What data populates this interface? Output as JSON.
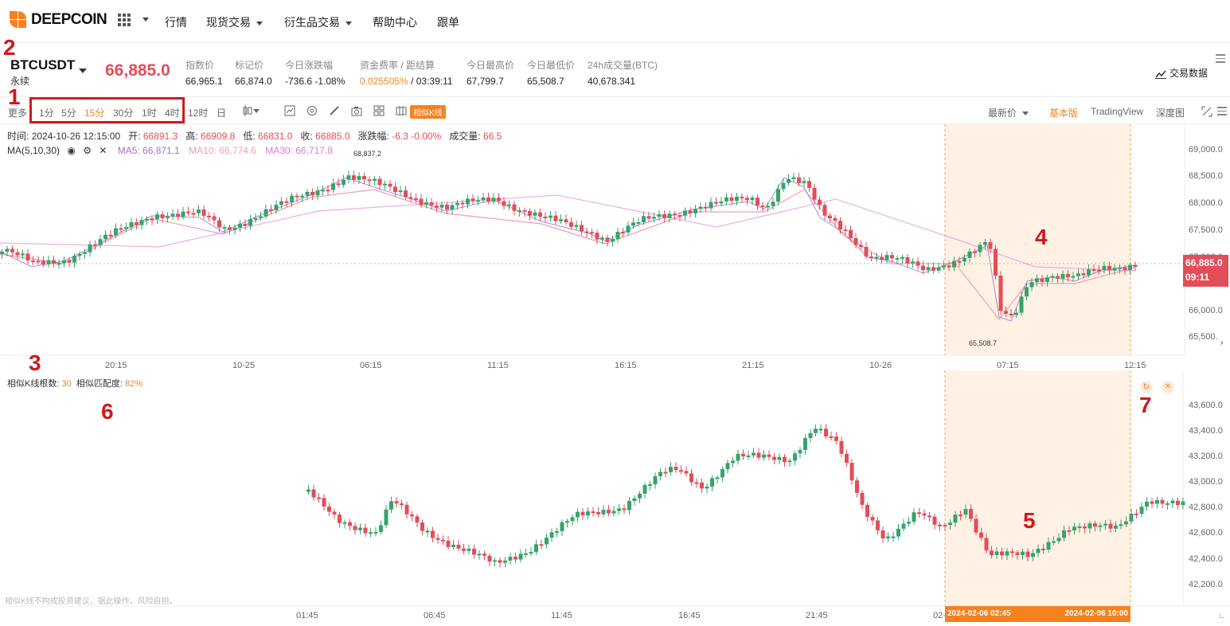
{
  "brand": {
    "name": "DEEPCOIN",
    "color": "#f5821f"
  },
  "nav": [
    "行情",
    "现货交易",
    "衍生品交易",
    "帮助中心",
    "跟单"
  ],
  "ticker": {
    "symbol": "BTCUSDT",
    "contract": "永续",
    "last_price": "66,885.0",
    "stats": [
      {
        "label": "指数价",
        "value": "66,965.1"
      },
      {
        "label": "标记价",
        "value": "66,874.0"
      },
      {
        "label": "今日涨跌幅",
        "value": "-736.6 -1.08%"
      },
      {
        "label": "资金费率 / 距结算",
        "value": "0.025505%",
        "value2": " / 03:39:11"
      },
      {
        "label": "今日最高价",
        "value": "67,799.7"
      },
      {
        "label": "今日最低价",
        "value": "65,508.7"
      },
      {
        "label": "24h成交量(BTC)",
        "value": "40,678.341"
      }
    ],
    "trade_data": "交易数据"
  },
  "toolbar": {
    "more": "更多",
    "intervals": [
      "1分",
      "5分",
      "15分",
      "30分",
      "1时",
      "4时",
      "12时",
      "日"
    ],
    "active_interval": "15分",
    "similar_kline": "相似K线",
    "price_mode": "最新价",
    "views": [
      "基本版",
      "TradingView",
      "深度图"
    ],
    "active_view": "基本版"
  },
  "ohlc": {
    "time_label": "时间:",
    "time": "2024-10-26 12:15:00",
    "open_label": "开:",
    "open": "66891.3",
    "high_label": "高:",
    "high": "66909.8",
    "low_label": "低:",
    "low": "66831.0",
    "close_label": "收:",
    "close": "66885.0",
    "chg_label": "涨跌幅:",
    "chg": "-6.3 -0.00%",
    "vol_label": "成交量:",
    "vol": "66.5"
  },
  "ma": {
    "label": "MA(5,10,30)",
    "ma5": "MA5: 66,871.1",
    "ma10": "MA10: 66,774.6",
    "ma30": "MA30: 66,717.8",
    "colors": {
      "ma5": "#9b72cf",
      "ma10": "#f49eaa",
      "ma30": "#e07ad7"
    }
  },
  "main_chart": {
    "y_ticks": [
      "69,000.0",
      "68,500.0",
      "68,000.0",
      "67,500.0",
      "67,000.0",
      "66,000.0",
      "65,500."
    ],
    "x_ticks": [
      "20:15",
      "10-25",
      "06:15",
      "11:15",
      "16:15",
      "21:15",
      "10-26",
      "07:15",
      "12:15"
    ],
    "price_tag": "66,885.0",
    "countdown": "09:11",
    "high_marker": "68,837.2",
    "low_marker": "65,508.7",
    "up_color": "#35a46b",
    "down_color": "#e34d59"
  },
  "similar": {
    "count_label": "相似K线根数:",
    "count": "30",
    "match_label": "相似匹配度:",
    "match": "82%",
    "y_ticks": [
      "43,600.0",
      "43,400.0",
      "43,200.0",
      "43,000.0",
      "42,800.0",
      "42,600.0",
      "42,400.0",
      "42,200.0"
    ],
    "x_ticks": [
      "01:45",
      "06:45",
      "11:45",
      "16:45",
      "21:45",
      "02-"
    ],
    "start_date": "2024-02-06 02:45",
    "end_date": "2024-02-06 10:00",
    "footnote": "相似K线不构成投资建议，据此操作，风险自担。"
  },
  "annotations": [
    "1",
    "2",
    "3",
    "4",
    "5",
    "6",
    "7"
  ]
}
